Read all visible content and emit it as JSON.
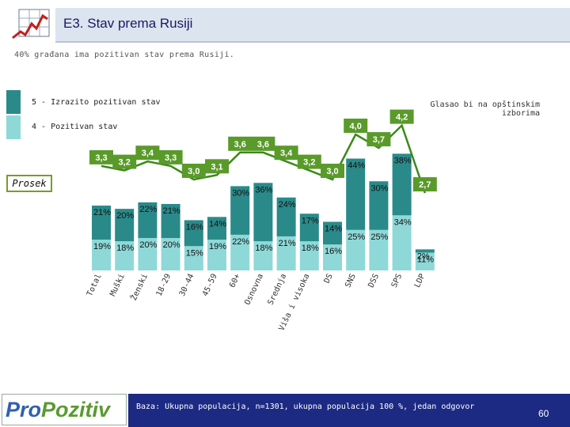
{
  "header": {
    "title": "E3. Stav prema Rusiji"
  },
  "subtitle": "40% građana ima pozitivan stav prema Rusiji.",
  "legend": [
    {
      "label": "5 - Izrazito pozitivan stav",
      "color": "#2a8a8a"
    },
    {
      "label": "4 - Pozitivan stav",
      "color": "#8fd8d8"
    }
  ],
  "voters_label": "Glasao bi na opštinskim izborima",
  "average_label": "Prosek",
  "colors": {
    "dark": "#2a8a8a",
    "light": "#8fd8d8",
    "avg_bg": "#5a9a2a",
    "avg_line": "#3a8a1a"
  },
  "chart_data": {
    "type": "bar",
    "stacked": true,
    "title": "E3. Stav prema Rusiji",
    "categories": [
      "Total",
      "Muški",
      "Ženski",
      "18-29",
      "30-44",
      "45-59",
      "60+",
      "Osnovna",
      "Srednja",
      "Viša i visoka",
      "DS",
      "SNS",
      "DSS",
      "SPS",
      "LDP"
    ],
    "series": [
      {
        "name": "4 - Pozitivan stav",
        "values": [
          19,
          18,
          20,
          20,
          15,
          19,
          22,
          18,
          21,
          18,
          16,
          25,
          25,
          34,
          11
        ]
      },
      {
        "name": "5 - Izrazito pozitivan stav",
        "values": [
          21,
          20,
          22,
          21,
          16,
          14,
          30,
          36,
          24,
          17,
          14,
          44,
          30,
          38,
          2
        ]
      }
    ],
    "labels": {
      "light": [
        "19%",
        "18%",
        "20%",
        "20%",
        "15%",
        "19%",
        "22%",
        "18%",
        "21%",
        "18%",
        "16%",
        "25%",
        "25%",
        "34%",
        "11%"
      ],
      "dark": [
        "21%",
        "20%",
        "22%",
        "21%",
        "16%",
        "14%",
        "30%",
        "36%",
        "24%",
        "17%",
        "14%",
        "44%",
        "30%",
        "38%",
        "2%"
      ]
    },
    "average_series": {
      "name": "Prosek",
      "values": [
        3.3,
        3.2,
        3.4,
        3.3,
        3.0,
        3.1,
        3.6,
        3.6,
        3.4,
        3.2,
        3.0,
        4.0,
        3.7,
        4.2,
        2.7
      ],
      "labels": [
        "3,3",
        "3,2",
        "3,4",
        "3,3",
        "3,0",
        "3,1",
        "3,6",
        "3,6",
        "3,4",
        "3,2",
        "3,0",
        "4,0",
        "3,7",
        "4,2",
        "2,7"
      ]
    },
    "ylim": [
      0,
      100
    ]
  },
  "footer": {
    "logo_pro": "Pro",
    "logo_poz": "Pozitiv",
    "base_note": "Baza: Ukupna populacija, n=1301, ukupna populacija 100 %, jedan odgovor",
    "page_number": "60"
  }
}
